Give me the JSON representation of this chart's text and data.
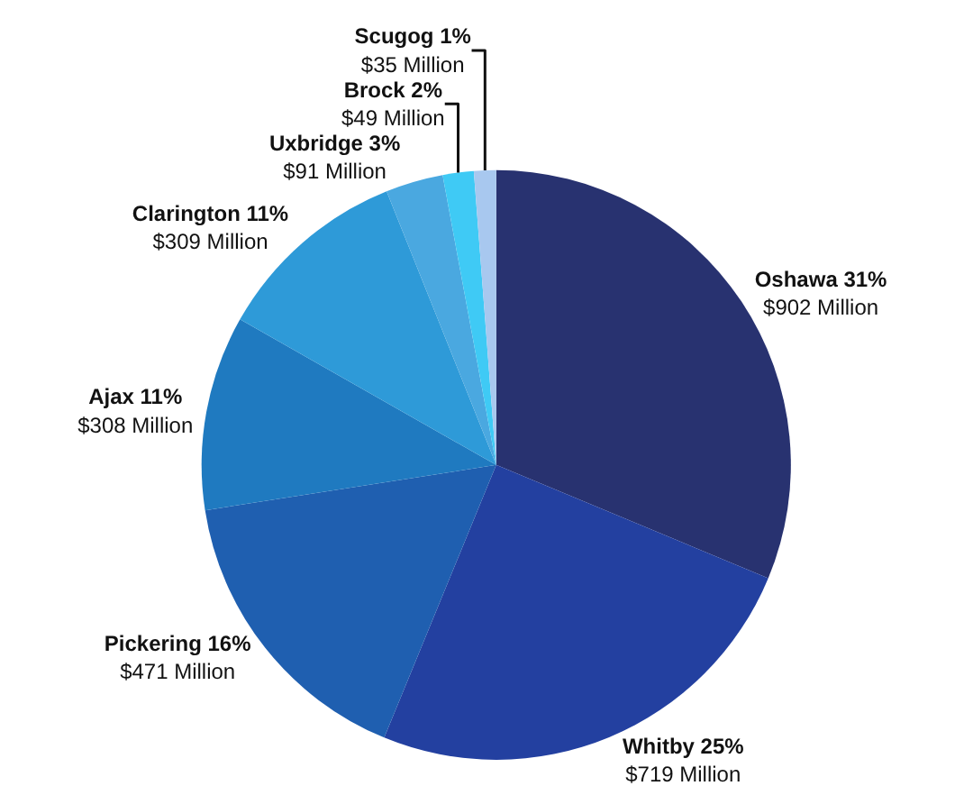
{
  "chart_data": {
    "type": "pie",
    "categories": [
      "Oshawa",
      "Whitby",
      "Pickering",
      "Ajax",
      "Clarington",
      "Uxbridge",
      "Brock",
      "Scugog"
    ],
    "values": [
      902,
      719,
      471,
      308,
      309,
      91,
      49,
      35
    ],
    "colors": [
      "#283270",
      "#2340a0",
      "#1f5fb0",
      "#1f7ac0",
      "#2e9ad8",
      "#4aa8e0",
      "#3fcaf5",
      "#a8c8ef"
    ],
    "value_labels": [
      "31%\n$902 Million",
      "25%\n$719 Million",
      "16%\n$471 Million",
      "11%\n$308 Million",
      "11%\n$309 Million",
      "3%\n$91 Million",
      "2%\n$49 Million",
      "1%\n$35 Million"
    ],
    "legend": false
  }
}
